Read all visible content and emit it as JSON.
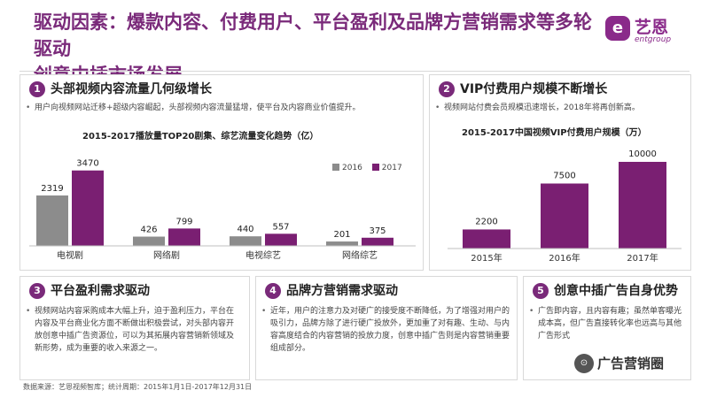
{
  "header": {
    "title_line1": "驱动因素：爆款内容、付费用户、平台盈利及品牌方营销需求等多轮驱动",
    "title_line2": "创意中插市场发展",
    "logo_mark": "e",
    "logo_name": "艺恩",
    "logo_sub": "entgroup"
  },
  "panels": [
    {
      "num": "1",
      "title": "头部视频内容流量几何级增长",
      "text": "用户向视频网站迁移+超级内容崛起，头部视频内容流量猛增，使平台及内容商业价值提升。"
    },
    {
      "num": "2",
      "title": "VIP付费用户规模不断增长",
      "text": "视频网站付费会员规模迅速增长，2018年将再创新高。"
    },
    {
      "num": "3",
      "title": "平台盈利需求驱动",
      "text": "视频网站内容采购成本大幅上升，迫于盈利压力，平台在内容及平台商业化方面不断做出积极尝试，对头部内容开放创意中插广告资源位，可以为其拓展内容营销新领域及新形势，成为重要的收入来源之一。"
    },
    {
      "num": "4",
      "title": "品牌方营销需求驱动",
      "text": "近年，用户的注意力及对硬广的接受度不断降低，为了增强对用户的吸引力，品牌方除了进行硬广投放外，更加重了对有趣、生动、与内容高度结合的内容营销的投放力度，创意中插广告则是内容营销重要组成部分。"
    },
    {
      "num": "5",
      "title": "创意中插广告自身优势",
      "text": "广告即内容，且内容有趣；虽然单客曝光成本高，但广告直接转化率也远高与其他广告形式"
    }
  ],
  "source": "数据来源：艺恩视频智库；统计周期：2015年1月1日-2017年12月31日",
  "watermark": {
    "icon": "⊙",
    "text": "广告营销圈"
  },
  "colors": {
    "accent": "#7a2a7a",
    "bar_2016": "#8c8c8c",
    "bar_2017": "#7a1f72"
  },
  "chart_data": [
    {
      "type": "bar",
      "title": "2015-2017播放量TOP20剧集、综艺流量变化趋势（亿）",
      "categories": [
        "电视剧",
        "网络剧",
        "电视综艺",
        "网络综艺"
      ],
      "series": [
        {
          "name": "2016",
          "values": [
            2319,
            426,
            440,
            201
          ]
        },
        {
          "name": "2017",
          "values": [
            3470,
            799,
            557,
            375
          ]
        }
      ],
      "legend": "top-right",
      "ylim": [
        0,
        3500
      ],
      "grid": false
    },
    {
      "type": "bar",
      "title": "2015-2017中国视频VIP付费用户规模（万）",
      "categories": [
        "2015年",
        "2016年",
        "2017年"
      ],
      "values": [
        2200,
        7500,
        10000
      ],
      "ylim": [
        0,
        10000
      ],
      "grid": false
    }
  ]
}
